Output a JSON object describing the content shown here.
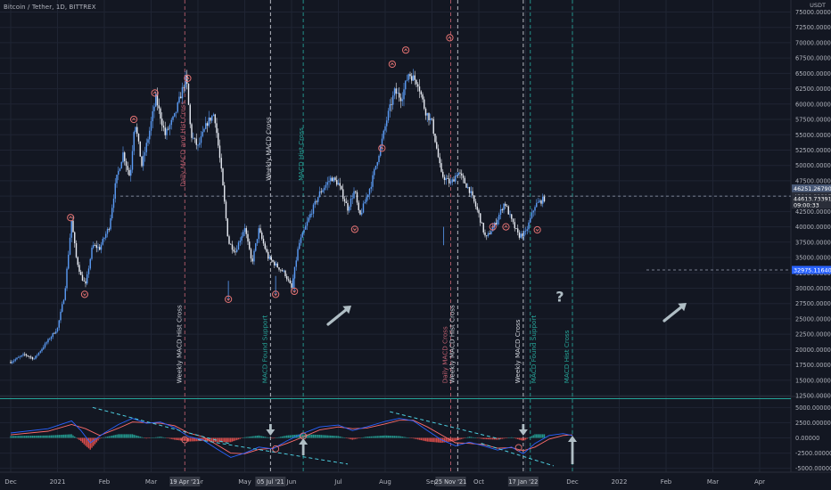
{
  "title": "Bitcoin / Tether, 1D, BITTREX",
  "currency": "USDT",
  "colors": {
    "background": "#131722",
    "grid": "#1f2433",
    "candle": "#5b9cf6",
    "candle_down": "#e8ecf4",
    "macd_line": "#2962ff",
    "signal_line": "#ff6d6d",
    "hist_pos": "#26a69a",
    "hist_neg": "#ef5350",
    "trend": "#4dd0e1",
    "arrow": "#b0bec5",
    "marker": "#e57373",
    "guide_red": "#c06070",
    "guide_white": "#d1d4dc",
    "guide_green": "#26a69a",
    "support_line": "#26a69a"
  },
  "chart_data": {
    "type": "candlestick",
    "title": "Bitcoin / Tether, 1D, BITTREX",
    "price_ticks": [
      "75000.00000",
      "72500.00000",
      "70000.00000",
      "67500.00000",
      "65000.00000",
      "62500.00000",
      "60000.00000",
      "57500.00000",
      "55000.00000",
      "52500.00000",
      "50000.00000",
      "47500.00000",
      "45000.00000",
      "42500.00000",
      "40000.00000",
      "37500.00000",
      "35000.00000",
      "32500.00000",
      "30000.00000",
      "27500.00000",
      "25000.00000",
      "22500.00000",
      "20000.00000",
      "17500.00000",
      "15000.00000",
      "12500.00000"
    ],
    "price_tick_values": [
      75000,
      72500,
      70000,
      67500,
      65000,
      62500,
      60000,
      57500,
      55000,
      52500,
      50000,
      47500,
      45000,
      42500,
      40000,
      37500,
      35000,
      32500,
      30000,
      27500,
      25000,
      22500,
      20000,
      17500,
      15000,
      12500
    ],
    "macd_ticks": [
      "5000.00000",
      "2500.00000",
      "0.00000",
      "-2500.00000",
      "-5000.00000"
    ],
    "macd_tick_values": [
      5000,
      2500,
      0,
      -2500,
      -5000
    ],
    "x_ticks": [
      "Dec",
      "2021",
      "Feb",
      "Mar",
      "Apr",
      "May",
      "Jun",
      "Jul",
      "Aug",
      "Sep",
      "Oct",
      "Nov",
      "Dec",
      "2022",
      "Feb",
      "Mar",
      "Apr"
    ],
    "x_tick_months": [
      0,
      1,
      2,
      3,
      4,
      5,
      6,
      7,
      8,
      9,
      10,
      11,
      12,
      13,
      14,
      15,
      16
    ],
    "price_path": [
      [
        0,
        18000
      ],
      [
        0.3,
        19200
      ],
      [
        0.5,
        18500
      ],
      [
        0.8,
        21500
      ],
      [
        1.0,
        23500
      ],
      [
        1.15,
        29000
      ],
      [
        1.3,
        41000
      ],
      [
        1.4,
        35000
      ],
      [
        1.5,
        32000
      ],
      [
        1.6,
        30500
      ],
      [
        1.75,
        37000
      ],
      [
        1.9,
        36500
      ],
      [
        2.1,
        40000
      ],
      [
        2.25,
        47500
      ],
      [
        2.4,
        52000
      ],
      [
        2.55,
        48000
      ],
      [
        2.65,
        57500
      ],
      [
        2.8,
        50000
      ],
      [
        2.95,
        55000
      ],
      [
        3.1,
        61000
      ],
      [
        3.3,
        55000
      ],
      [
        3.5,
        58000
      ],
      [
        3.75,
        64500
      ],
      [
        3.85,
        55000
      ],
      [
        4.0,
        53000
      ],
      [
        4.2,
        57000
      ],
      [
        4.35,
        58500
      ],
      [
        4.5,
        49000
      ],
      [
        4.65,
        37500
      ],
      [
        4.8,
        36000
      ],
      [
        5.0,
        40000
      ],
      [
        5.15,
        34000
      ],
      [
        5.3,
        39500
      ],
      [
        5.5,
        35000
      ],
      [
        5.7,
        33500
      ],
      [
        5.85,
        32500
      ],
      [
        6.0,
        30000
      ],
      [
        6.15,
        37000
      ],
      [
        6.4,
        42000
      ],
      [
        6.6,
        45500
      ],
      [
        6.85,
        48000
      ],
      [
        7.0,
        47000
      ],
      [
        7.2,
        43000
      ],
      [
        7.35,
        46000
      ],
      [
        7.45,
        41500
      ],
      [
        7.7,
        47000
      ],
      [
        7.9,
        53000
      ],
      [
        8.05,
        58000
      ],
      [
        8.2,
        62000
      ],
      [
        8.35,
        61000
      ],
      [
        8.5,
        65000
      ],
      [
        8.7,
        63500
      ],
      [
        8.85,
        59000
      ],
      [
        9.0,
        57000
      ],
      [
        9.2,
        48500
      ],
      [
        9.4,
        47000
      ],
      [
        9.55,
        49000
      ],
      [
        9.8,
        46000
      ],
      [
        10.0,
        42000
      ],
      [
        10.15,
        38000
      ],
      [
        10.35,
        40500
      ],
      [
        10.55,
        44000
      ],
      [
        10.7,
        41000
      ],
      [
        10.85,
        38500
      ],
      [
        11.0,
        39000
      ],
      [
        11.2,
        43500
      ],
      [
        11.4,
        44600
      ]
    ],
    "high_markers": [
      {
        "month": 1.28,
        "price": 41500
      },
      {
        "month": 2.63,
        "price": 57500
      },
      {
        "month": 3.08,
        "price": 61800
      },
      {
        "month": 3.78,
        "price": 64200
      },
      {
        "month": 7.93,
        "price": 52800
      },
      {
        "month": 8.15,
        "price": 66500
      },
      {
        "month": 8.44,
        "price": 68800
      },
      {
        "month": 9.38,
        "price": 70800
      },
      {
        "month": 10.3,
        "price": 40000
      },
      {
        "month": 10.58,
        "price": 40000
      }
    ],
    "low_markers": [
      {
        "month": 1.58,
        "price": 29000
      },
      {
        "month": 4.65,
        "price": 28200
      },
      {
        "month": 5.66,
        "price": 29000
      },
      {
        "month": 6.06,
        "price": 29500
      },
      {
        "month": 7.35,
        "price": 39600
      },
      {
        "month": 11.25,
        "price": 39500
      }
    ],
    "price_labels": [
      {
        "label": "46251.26790",
        "value": 46250,
        "color": "#4a5a78"
      },
      {
        "label": "45000.32317",
        "value": 45000,
        "color": "#2a2e39"
      },
      {
        "label": "BTCUSDT",
        "value": 44150,
        "color": "#2962ff"
      },
      {
        "label": "44613.73391",
        "value": 44613,
        "color": "#2a2e39"
      },
      {
        "label": "09:00:33",
        "value": 43600,
        "color": "#2a2e39"
      },
      {
        "label": "32975.11640",
        "value": 32975,
        "color": "#2962ff"
      }
    ],
    "support_levels": [
      45000,
      32975
    ],
    "support_line_value": 12000,
    "vertical_markers": [
      {
        "month": 3.72,
        "label": "Daily MACD and Hist Cross",
        "color": "#c06070",
        "label_price": 46500,
        "date": "19 Apr '21"
      },
      {
        "month": 3.72,
        "label": "Weekly MACD Hist Cross",
        "color": "#d1d4dc",
        "label_price": 14500
      },
      {
        "month": 5.55,
        "label": "Weekly MACD Cross",
        "color": "#d1d4dc",
        "label_price": 47500
      },
      {
        "month": 5.55,
        "label": "MACD Found Support",
        "color": "#26a69a",
        "label_price": 14500,
        "date": "05 Jul '21"
      },
      {
        "month": 6.25,
        "label": "MACD Hist Cross",
        "color": "#26a69a",
        "label_price": 47500
      },
      {
        "month": 9.4,
        "label": "Daily MACD Cross",
        "color": "#c06070",
        "label_price": 14500,
        "date": "25 Nov '21"
      },
      {
        "month": 9.55,
        "label": "Weekly MACD Hist Cross",
        "color": "#d1d4dc",
        "label_price": 14500
      },
      {
        "month": 10.95,
        "label": "Weekly MACD Cross",
        "color": "#d1d4dc",
        "label_price": 14500,
        "date": "17 Jan '22"
      },
      {
        "month": 11.1,
        "label": "MACD Found Support",
        "color": "#26a69a",
        "label_price": 14500
      },
      {
        "month": 12.0,
        "label": "MACD Hist Cross",
        "color": "#26a69a",
        "label_price": 14500
      }
    ],
    "annotations": [
      {
        "text": "?",
        "month": 11.72,
        "price": 28400
      }
    ],
    "macd_line": [
      [
        0,
        800
      ],
      [
        0.8,
        1500
      ],
      [
        1.3,
        2800
      ],
      [
        1.5,
        1200
      ],
      [
        1.7,
        -800
      ],
      [
        2.0,
        800
      ],
      [
        2.3,
        2200
      ],
      [
        2.6,
        3200
      ],
      [
        2.9,
        2400
      ],
      [
        3.2,
        2600
      ],
      [
        3.5,
        1700
      ],
      [
        3.8,
        200
      ],
      [
        4.1,
        -300
      ],
      [
        4.4,
        -1800
      ],
      [
        4.7,
        -3200
      ],
      [
        5.0,
        -2500
      ],
      [
        5.3,
        -1500
      ],
      [
        5.6,
        -1800
      ],
      [
        5.9,
        -500
      ],
      [
        6.2,
        600
      ],
      [
        6.6,
        1800
      ],
      [
        7.0,
        2100
      ],
      [
        7.3,
        1200
      ],
      [
        7.6,
        1800
      ],
      [
        8.0,
        2700
      ],
      [
        8.3,
        3200
      ],
      [
        8.6,
        2800
      ],
      [
        8.9,
        1200
      ],
      [
        9.2,
        -300
      ],
      [
        9.5,
        -1300
      ],
      [
        9.8,
        -700
      ],
      [
        10.1,
        -1300
      ],
      [
        10.4,
        -2000
      ],
      [
        10.7,
        -1500
      ],
      [
        10.95,
        -2600
      ],
      [
        11.2,
        -900
      ],
      [
        11.5,
        400
      ],
      [
        11.8,
        700
      ],
      [
        12.0,
        400
      ]
    ],
    "signal_line": [
      [
        0,
        500
      ],
      [
        0.8,
        1100
      ],
      [
        1.3,
        2200
      ],
      [
        1.6,
        1500
      ],
      [
        1.9,
        400
      ],
      [
        2.3,
        1600
      ],
      [
        2.6,
        2600
      ],
      [
        2.9,
        2500
      ],
      [
        3.2,
        2400
      ],
      [
        3.5,
        2000
      ],
      [
        3.8,
        800
      ],
      [
        4.1,
        200
      ],
      [
        4.4,
        -1100
      ],
      [
        4.7,
        -2500
      ],
      [
        5.0,
        -2600
      ],
      [
        5.3,
        -1900
      ],
      [
        5.6,
        -1700
      ],
      [
        5.9,
        -900
      ],
      [
        6.2,
        0
      ],
      [
        6.6,
        1300
      ],
      [
        7.0,
        1800
      ],
      [
        7.3,
        1500
      ],
      [
        7.6,
        1600
      ],
      [
        8.0,
        2300
      ],
      [
        8.3,
        2900
      ],
      [
        8.6,
        2900
      ],
      [
        8.9,
        1800
      ],
      [
        9.2,
        500
      ],
      [
        9.5,
        -800
      ],
      [
        9.8,
        -900
      ],
      [
        10.1,
        -1100
      ],
      [
        10.4,
        -1700
      ],
      [
        10.7,
        -1600
      ],
      [
        10.95,
        -2100
      ],
      [
        11.2,
        -1500
      ],
      [
        11.5,
        -200
      ],
      [
        11.8,
        400
      ],
      [
        12.0,
        500
      ]
    ],
    "macd_trendlines": [
      {
        "from": [
          1.75,
          5000
        ],
        "to": [
          4.7,
          -1000
        ]
      },
      {
        "from": [
          4.0,
          -300
        ],
        "to": [
          7.2,
          -4300
        ]
      },
      {
        "from": [
          8.1,
          4300
        ],
        "to": [
          10.45,
          -200
        ]
      },
      {
        "from": [
          10.05,
          -900
        ],
        "to": [
          11.6,
          -4600
        ]
      }
    ]
  }
}
